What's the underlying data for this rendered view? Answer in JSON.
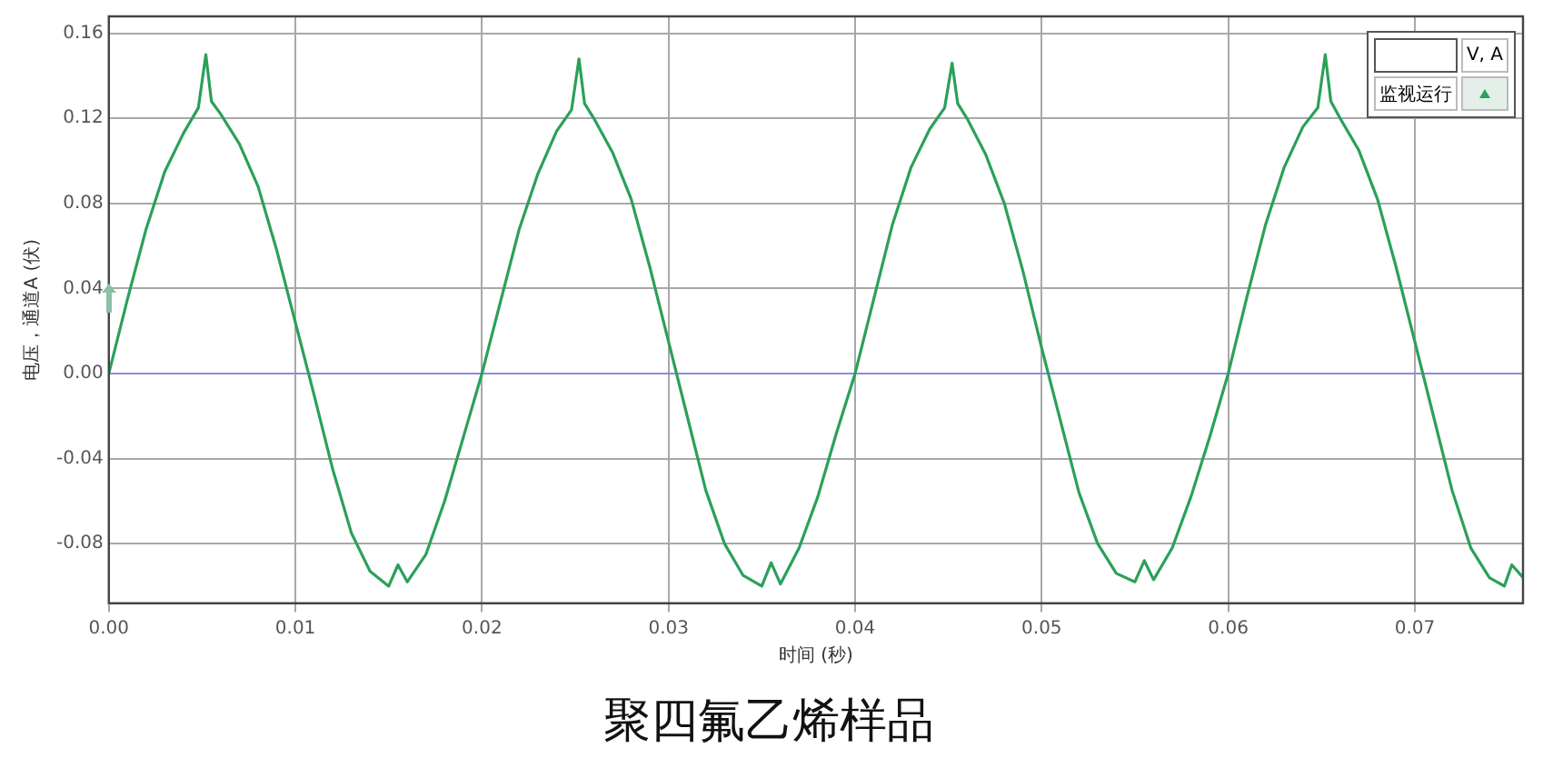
{
  "chart_data": {
    "type": "line",
    "title": "聚四氟乙烯样品",
    "xlabel": "时间 (秒)",
    "ylabel": "电压，通道A (伏)",
    "annotations": [
      "V, A",
      "监视运行"
    ],
    "xlim": [
      0,
      0.0758
    ],
    "xticks": [
      {
        "value": 0,
        "label": "0.00"
      },
      0.01,
      0.02,
      0.03,
      0.04,
      0.05,
      0.06,
      0.07
    ],
    "ylim": [
      -0.108,
      0.168
    ],
    "yticks": [
      0.16,
      0.12,
      0.08,
      0.04,
      {
        "value": 0,
        "label": "0.00"
      },
      -0.04,
      -0.08
    ],
    "grid": true,
    "legend": false,
    "marker": "none",
    "line_style": "solid",
    "ref_lines": [
      {
        "axis": "y",
        "value": 0,
        "color": "#8c8cd8"
      }
    ],
    "series": [
      {
        "color": "#2ba05a",
        "x": [
          0,
          0.001,
          0.002,
          0.003,
          0.004,
          0.0048,
          0.0052,
          0.0055,
          0.006,
          0.007,
          0.008,
          0.009,
          0.01,
          0.011,
          0.012,
          0.013,
          0.014,
          0.015,
          0.0155,
          0.016,
          0.017,
          0.018,
          0.019,
          0.02,
          0.021,
          0.022,
          0.023,
          0.024,
          0.0248,
          0.0252,
          0.0255,
          0.026,
          0.027,
          0.028,
          0.029,
          0.03,
          0.031,
          0.032,
          0.033,
          0.034,
          0.035,
          0.0355,
          0.036,
          0.037,
          0.038,
          0.039,
          0.04,
          0.041,
          0.042,
          0.043,
          0.044,
          0.0448,
          0.0452,
          0.0455,
          0.046,
          0.047,
          0.048,
          0.049,
          0.05,
          0.051,
          0.052,
          0.053,
          0.054,
          0.055,
          0.0555,
          0.056,
          0.057,
          0.058,
          0.059,
          0.06,
          0.061,
          0.062,
          0.063,
          0.064,
          0.0648,
          0.0652,
          0.0655,
          0.066,
          0.067,
          0.068,
          0.069,
          0.07,
          0.071,
          0.072,
          0.073,
          0.074,
          0.0748,
          0.0752,
          0.0758
        ],
        "values": [
          0,
          0.035,
          0.068,
          0.095,
          0.113,
          0.125,
          0.15,
          0.128,
          0.122,
          0.108,
          0.088,
          0.058,
          0.024,
          -0.01,
          -0.045,
          -0.075,
          -0.093,
          -0.1,
          -0.09,
          -0.098,
          -0.085,
          -0.06,
          -0.03,
          0.0,
          0.034,
          0.068,
          0.094,
          0.114,
          0.124,
          0.148,
          0.127,
          0.12,
          0.104,
          0.082,
          0.05,
          0.015,
          -0.02,
          -0.055,
          -0.08,
          -0.095,
          -0.1,
          -0.089,
          -0.099,
          -0.082,
          -0.058,
          -0.028,
          0.0,
          0.035,
          0.07,
          0.097,
          0.115,
          0.125,
          0.146,
          0.127,
          0.12,
          0.103,
          0.08,
          0.048,
          0.012,
          -0.022,
          -0.056,
          -0.08,
          -0.094,
          -0.098,
          -0.088,
          -0.097,
          -0.082,
          -0.058,
          -0.03,
          0.0,
          0.036,
          0.07,
          0.097,
          0.116,
          0.125,
          0.15,
          0.128,
          0.12,
          0.105,
          0.082,
          0.05,
          0.015,
          -0.02,
          -0.055,
          -0.082,
          -0.096,
          -0.1,
          -0.09,
          -0.096
        ]
      }
    ]
  }
}
